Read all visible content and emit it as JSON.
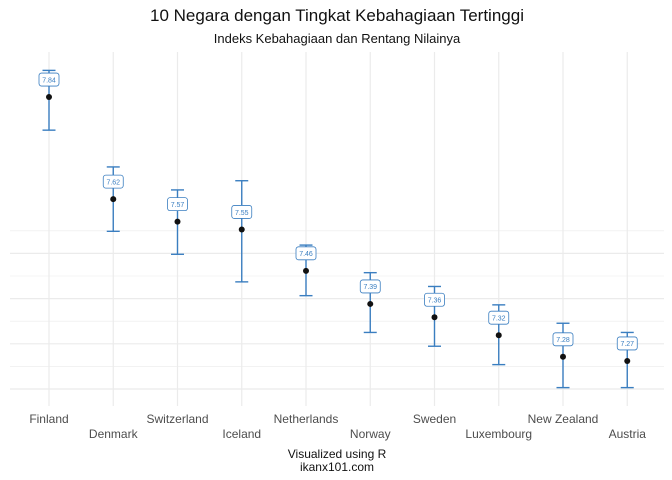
{
  "chart_data": {
    "type": "errorbar",
    "title": "10 Negara dengan Tingkat Kebahagiaan Tertinggi",
    "subtitle": "Indeks Kebahagiaan dan Rentang Nilainya",
    "caption_lines": [
      "Visualized using R",
      "ikanx101.com"
    ],
    "categories": [
      "Finland",
      "Denmark",
      "Switzerland",
      "Iceland",
      "Netherlands",
      "Norway",
      "Sweden",
      "Luxembourg",
      "New Zealand",
      "Austria"
    ],
    "values": [
      7.842,
      7.62,
      7.571,
      7.554,
      7.464,
      7.392,
      7.363,
      7.324,
      7.277,
      7.268
    ],
    "value_labels": [
      "7.84",
      "7.62",
      "7.57",
      "7.55",
      "7.46",
      "7.39",
      "7.36",
      "7.32",
      "7.28",
      "7.27"
    ],
    "lower": [
      7.77,
      7.55,
      7.5,
      7.44,
      7.41,
      7.33,
      7.3,
      7.26,
      7.21,
      7.21
    ],
    "upper": [
      7.9,
      7.69,
      7.64,
      7.66,
      7.52,
      7.46,
      7.43,
      7.39,
      7.35,
      7.33
    ],
    "ylim": [
      7.17,
      7.94
    ],
    "grid": true,
    "colors": {
      "bar": "#3a7ec0",
      "point": "#111111",
      "grid": "#ebebeb"
    }
  }
}
